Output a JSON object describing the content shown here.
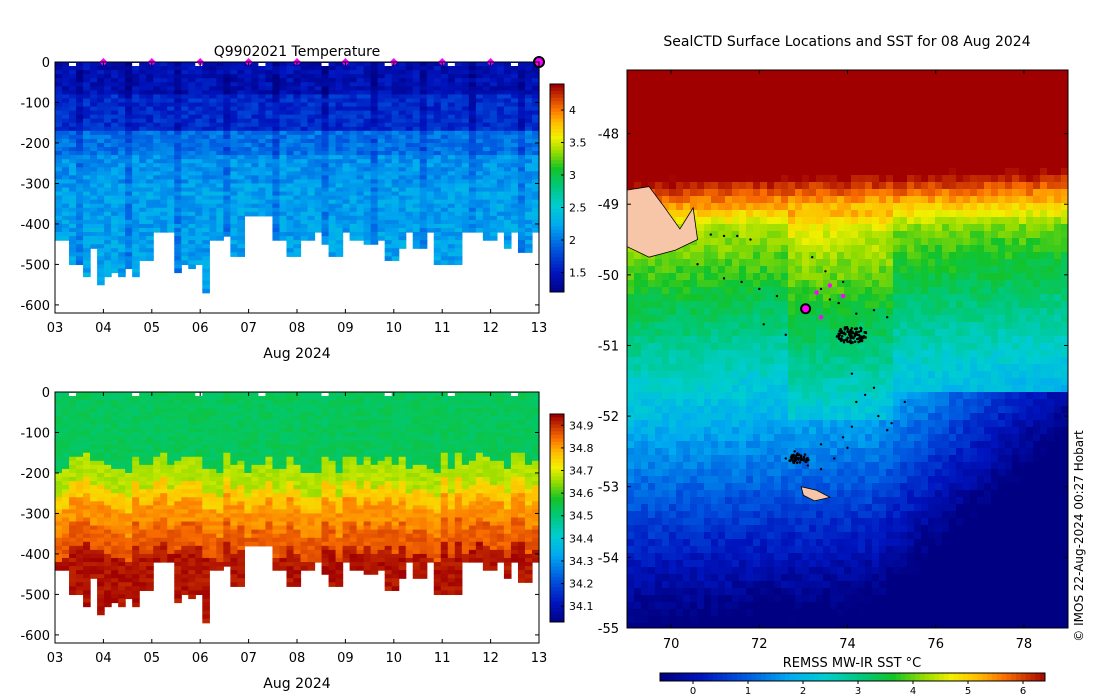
{
  "chart_data": [
    {
      "id": "temperature_section",
      "type": "heatmap",
      "title": "Q9902021  Temperature",
      "xlabel": "Aug 2024",
      "ylabel": "",
      "xlim": [
        3,
        13
      ],
      "ylim": [
        -620,
        0
      ],
      "x_ticks": [
        3,
        4,
        5,
        6,
        7,
        8,
        9,
        10,
        11,
        12,
        13
      ],
      "x_tick_labels": [
        "03",
        "04",
        "05",
        "06",
        "07",
        "08",
        "09",
        "10",
        "11",
        "12",
        "13"
      ],
      "y_ticks": [
        0,
        -100,
        -200,
        -300,
        -400,
        -500,
        -600
      ],
      "y_tick_labels": [
        "0",
        "-100",
        "-200",
        "-300",
        "-400",
        "-500",
        "-600"
      ],
      "colorbar": {
        "min": 1.2,
        "max": 4.4,
        "ticks": [
          1.5,
          2,
          2.5,
          3,
          3.5,
          4
        ],
        "tick_labels": [
          "1.5",
          "2",
          "2.5",
          "3",
          "3.5",
          "4"
        ]
      },
      "surface_marker_days": [
        4,
        5,
        6,
        7,
        8,
        9,
        10,
        11,
        12
      ],
      "current_position_day": 13,
      "profile_max_depths": [
        440,
        440,
        500,
        500,
        525,
        460,
        545,
        530,
        515,
        530,
        510,
        530,
        485,
        485,
        420,
        420,
        420,
        520,
        500,
        505,
        500,
        570,
        440,
        440,
        430,
        480,
        480,
        380,
        380,
        380,
        380,
        440,
        440,
        480,
        480,
        440,
        440,
        420,
        450,
        480,
        480,
        420,
        440,
        440,
        445,
        445,
        440,
        490,
        490,
        460,
        420,
        455,
        455,
        420,
        495,
        495,
        500,
        500,
        420,
        420,
        420,
        440,
        440,
        420,
        460,
        420,
        470,
        470,
        420
      ]
    },
    {
      "id": "salinity_section",
      "type": "heatmap",
      "title": "",
      "xlabel": "Aug 2024",
      "ylabel": "",
      "xlim": [
        3,
        13
      ],
      "ylim": [
        -620,
        0
      ],
      "x_ticks": [
        3,
        4,
        5,
        6,
        7,
        8,
        9,
        10,
        11,
        12,
        13
      ],
      "x_tick_labels": [
        "03",
        "04",
        "05",
        "06",
        "07",
        "08",
        "09",
        "10",
        "11",
        "12",
        "13"
      ],
      "y_ticks": [
        0,
        -100,
        -200,
        -300,
        -400,
        -500,
        -600
      ],
      "y_tick_labels": [
        "0",
        "-100",
        "-200",
        "-300",
        "-400",
        "-500",
        "-600"
      ],
      "colorbar": {
        "min": 34.03,
        "max": 34.95,
        "ticks": [
          34.1,
          34.2,
          34.3,
          34.4,
          34.5,
          34.6,
          34.7,
          34.8,
          34.9
        ],
        "tick_labels": [
          "34.1",
          "34.2",
          "34.3",
          "34.4",
          "34.5",
          "34.6",
          "34.7",
          "34.8",
          "34.9"
        ]
      }
    },
    {
      "id": "sst_map",
      "type": "heatmap",
      "title": "SealCTD Surface Locations and SST for 08 Aug 2024",
      "xlabel": "",
      "ylabel": "",
      "xlim": [
        69,
        79
      ],
      "ylim": [
        -55,
        -47.1
      ],
      "x_ticks": [
        70,
        72,
        74,
        76,
        78
      ],
      "x_tick_labels": [
        "70",
        "72",
        "74",
        "76",
        "78"
      ],
      "y_ticks": [
        -48,
        -49,
        -50,
        -51,
        -52,
        -53,
        -54,
        -55
      ],
      "y_tick_labels": [
        "-48",
        "-49",
        "-50",
        "-51",
        "-52",
        "-53",
        "-54",
        "-55"
      ],
      "colorbar": {
        "label": "REMSS MW-IR SST °C",
        "min": -0.6,
        "max": 6.4,
        "ticks": [
          0,
          1,
          2,
          3,
          4,
          5,
          6
        ],
        "tick_labels": [
          "0",
          "1",
          "2",
          "3",
          "4",
          "5",
          "6"
        ]
      },
      "seal_positions": [
        [
          70.9,
          -49.43
        ],
        [
          71.2,
          -49.45
        ],
        [
          71.5,
          -49.45
        ],
        [
          71.8,
          -49.5
        ],
        [
          70.6,
          -49.85
        ],
        [
          71.2,
          -50.05
        ],
        [
          71.6,
          -50.1
        ],
        [
          72.0,
          -50.2
        ],
        [
          72.4,
          -50.3
        ],
        [
          72.1,
          -50.7
        ],
        [
          72.6,
          -50.85
        ],
        [
          73.2,
          -49.75
        ],
        [
          73.5,
          -49.95
        ],
        [
          73.9,
          -50.1
        ],
        [
          73.4,
          -50.2
        ],
        [
          73.8,
          -50.4
        ],
        [
          74.2,
          -50.55
        ],
        [
          74.6,
          -50.5
        ],
        [
          74.9,
          -50.6
        ],
        [
          73.6,
          -50.35
        ],
        [
          74.1,
          -51.4
        ],
        [
          74.2,
          -51.8
        ],
        [
          74.1,
          -52.15
        ],
        [
          73.9,
          -52.3
        ],
        [
          73.4,
          -52.4
        ],
        [
          74.4,
          -51.7
        ],
        [
          74.7,
          -52.0
        ],
        [
          75.0,
          -52.1
        ],
        [
          74.9,
          -52.2
        ],
        [
          75.3,
          -51.8
        ],
        [
          74.6,
          -51.6
        ],
        [
          73.1,
          -52.7
        ],
        [
          73.4,
          -52.75
        ],
        [
          72.8,
          -52.5
        ],
        [
          72.6,
          -52.6
        ],
        [
          74.0,
          -52.45
        ],
        [
          73.7,
          -52.6
        ]
      ],
      "seal_clusters": [
        {
          "lon": 74.1,
          "lat": -50.85,
          "spread_lon": 0.35,
          "spread_lat": 0.12,
          "count": 90
        },
        {
          "lon": 72.9,
          "lat": -52.6,
          "spread_lon": 0.25,
          "spread_lat": 0.07,
          "count": 45
        }
      ],
      "recent_positions": [
        [
          73.3,
          -50.25
        ],
        [
          73.6,
          -50.15
        ],
        [
          73.9,
          -50.3
        ],
        [
          73.4,
          -50.6
        ]
      ],
      "current_position": [
        73.05,
        -50.48
      ],
      "land_label": "Kerguelen / Heard islands (land mask)"
    }
  ],
  "side_text": "© IMOS 22-Aug-2024 00:27 Hobart",
  "colors": {
    "surface_marker": "#ff00ff",
    "current_marker_fill": "#ff00ff",
    "track": "#000000",
    "land": "#f7c6a8"
  }
}
